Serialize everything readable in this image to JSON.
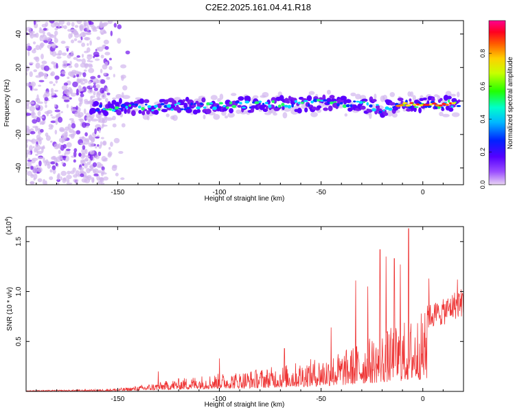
{
  "title": "C2E2.2025.161.04.41.R18",
  "chart_data": [
    {
      "type": "heatmap",
      "xlabel": "Height of straight line (km)",
      "ylabel": "Frequency (Hz)",
      "xlim": [
        -195,
        20
      ],
      "ylim": [
        -50,
        48
      ],
      "x_ticks": [
        -150,
        -100,
        -50,
        0
      ],
      "x_tick_labels": [
        "-150",
        "-100",
        "-50",
        "0"
      ],
      "y_ticks": [
        -40,
        -20,
        0,
        20,
        40
      ],
      "y_tick_labels": [
        "-40",
        "-20",
        "0",
        "20",
        "40"
      ],
      "signal_trace": {
        "x": [
          -175,
          -160,
          -150,
          -140,
          -120,
          -100,
          -80,
          -60,
          -45,
          -35,
          -25,
          -20,
          -15,
          -10,
          -5,
          0,
          10,
          18
        ],
        "frequency": [
          -6,
          -5,
          -4,
          -4,
          -3,
          -3,
          -2,
          -2,
          -1,
          -2,
          -3,
          -5,
          -3,
          -2,
          -2,
          -2,
          -2,
          -1
        ]
      },
      "noise_region_x": [
        -195,
        -145
      ],
      "colorbar": {
        "label": "Normalized spectral amplitude",
        "range": [
          0,
          1
        ],
        "ticks": [
          0.0,
          0.2,
          0.4,
          0.6,
          0.8
        ],
        "tick_labels": [
          "0.0",
          "0.2",
          "0.4",
          "0.6",
          "0.8"
        ],
        "colors": [
          "#e9d5f3",
          "#6a00ff",
          "#0000ff",
          "#00ffff",
          "#00ff00",
          "#ffff00",
          "#ff8000",
          "#ff0000",
          "#ff0080"
        ]
      }
    },
    {
      "type": "line",
      "xlabel": "Height of straight line (km)",
      "ylabel": "SNR (10 * v/v)",
      "y_multiplier_label": "(x10",
      "y_multiplier_exp": "4",
      "y_multiplier_close": ")",
      "xlim": [
        -195,
        20
      ],
      "ylim": [
        0,
        16500
      ],
      "x_ticks": [
        -150,
        -100,
        -50,
        0
      ],
      "x_tick_labels": [
        "-150",
        "-100",
        "-50",
        "0"
      ],
      "y_ticks": [
        5000,
        10000,
        15000
      ],
      "y_tick_labels": [
        "0.5",
        "1.0",
        "1.5"
      ],
      "color": "#ee3333",
      "baseline": {
        "x": [
          -195,
          -160,
          -145,
          -130,
          -120,
          -110,
          -100,
          -90,
          -80,
          -70,
          -60,
          -50,
          -40,
          -35,
          -30,
          -25,
          -20,
          -15,
          -10,
          -5,
          0,
          5,
          10,
          15,
          20
        ],
        "y": [
          100,
          200,
          400,
          900,
          1300,
          1600,
          1800,
          2000,
          2300,
          2600,
          3000,
          3500,
          4000,
          4500,
          5000,
          5500,
          6000,
          6500,
          7000,
          7500,
          8000,
          8500,
          8800,
          9500,
          10000
        ]
      },
      "peaks": {
        "x": [
          -130,
          -100,
          -68,
          -45,
          -33,
          -27,
          -21,
          -18,
          -14,
          -11,
          -7,
          3,
          17
        ],
        "y": [
          2000,
          3300,
          4300,
          6400,
          11100,
          10500,
          14200,
          13500,
          13300,
          12700,
          16300,
          11300,
          11200
        ]
      }
    }
  ]
}
